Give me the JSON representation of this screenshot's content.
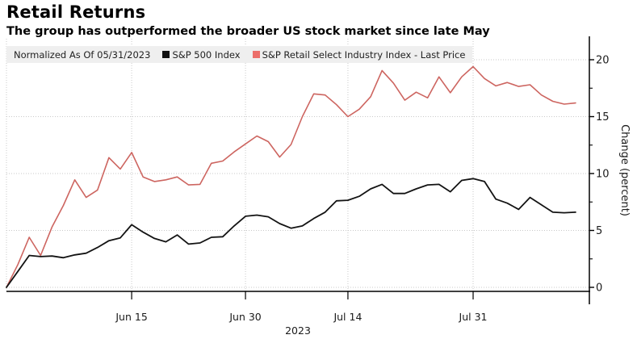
{
  "header": {
    "title": "Retail Returns",
    "subtitle": "The group has outperformed the broader US stock market since late May"
  },
  "legend": {
    "normalized_label": "Normalized As Of 05/31/2023",
    "items": [
      {
        "label": "S&P 500 Index",
        "swatch_color": "#111111"
      },
      {
        "label": "S&P Retail Select Industry Index - Last Price",
        "swatch_color": "#ec6e6a"
      }
    ]
  },
  "axes": {
    "y_title": "Change (percent)",
    "y_major_ticks": [
      0,
      5,
      10,
      15,
      20
    ],
    "y_minor_ticks": [
      2.5,
      7.5,
      12.5,
      17.5
    ],
    "x_ticks": [
      {
        "day_index": 11,
        "label": "Jun 15"
      },
      {
        "day_index": 21,
        "label": "Jun 30"
      },
      {
        "day_index": 30,
        "label": "Jul 14"
      },
      {
        "day_index": 41,
        "label": "Jul 31"
      }
    ],
    "x_year_label": "2023"
  },
  "chart_data": {
    "type": "line",
    "title": "Retail Returns",
    "xlabel": "2023",
    "ylabel": "Change (percent)",
    "ylim": [
      -1.5,
      22
    ],
    "grid": true,
    "legend_position": "top",
    "x": [
      "May 31",
      "Jun 1",
      "Jun 2",
      "Jun 5",
      "Jun 6",
      "Jun 7",
      "Jun 8",
      "Jun 9",
      "Jun 12",
      "Jun 13",
      "Jun 14",
      "Jun 15",
      "Jun 16",
      "Jun 20",
      "Jun 21",
      "Jun 22",
      "Jun 23",
      "Jun 26",
      "Jun 27",
      "Jun 28",
      "Jun 29",
      "Jun 30",
      "Jul 3",
      "Jul 5",
      "Jul 6",
      "Jul 7",
      "Jul 10",
      "Jul 11",
      "Jul 12",
      "Jul 13",
      "Jul 14",
      "Jul 17",
      "Jul 18",
      "Jul 19",
      "Jul 20",
      "Jul 21",
      "Jul 24",
      "Jul 25",
      "Jul 26",
      "Jul 27",
      "Jul 28",
      "Jul 31",
      "Aug 1",
      "Aug 2",
      "Aug 3",
      "Aug 4",
      "Aug 7",
      "Aug 8",
      "Aug 9",
      "Aug 10",
      "Aug 11"
    ],
    "series": [
      {
        "name": "S&P 500 Index",
        "color": "#131313",
        "stroke_width": 1.8,
        "values": [
          0.0,
          1.4,
          2.8,
          2.7,
          2.75,
          2.6,
          2.85,
          3.0,
          3.5,
          4.1,
          4.35,
          5.5,
          4.85,
          4.3,
          4.0,
          4.6,
          3.8,
          3.9,
          4.4,
          4.45,
          5.4,
          6.25,
          6.35,
          6.2,
          5.6,
          5.2,
          5.4,
          6.05,
          6.6,
          7.6,
          7.65,
          8.0,
          8.65,
          9.05,
          8.25,
          8.25,
          8.65,
          9.0,
          9.05,
          8.4,
          9.4,
          9.55,
          9.3,
          7.75,
          7.4,
          6.85,
          7.9,
          7.25,
          6.6,
          6.55,
          6.6
        ]
      },
      {
        "name": "S&P Retail Select Industry Index - Last Price",
        "color": "#cd6560",
        "stroke_width": 1.6,
        "values": [
          0.0,
          2.0,
          4.4,
          2.8,
          5.3,
          7.2,
          9.45,
          7.9,
          8.55,
          11.4,
          10.4,
          11.85,
          9.7,
          9.3,
          9.45,
          9.7,
          9.0,
          9.05,
          10.9,
          11.1,
          11.9,
          12.6,
          13.3,
          12.8,
          11.45,
          12.55,
          15.0,
          17.0,
          16.9,
          16.05,
          15.0,
          15.65,
          16.75,
          19.05,
          17.95,
          16.45,
          17.15,
          16.65,
          18.5,
          17.1,
          18.5,
          19.4,
          18.35,
          17.7,
          18.0,
          17.65,
          17.8,
          16.9,
          16.35,
          16.1,
          16.2
        ]
      }
    ],
    "style": {
      "grid_color": "#c9c9c9",
      "axis_color": "#000000",
      "tick_label_color": "#1a1a1a",
      "background": "#ffffff"
    }
  }
}
